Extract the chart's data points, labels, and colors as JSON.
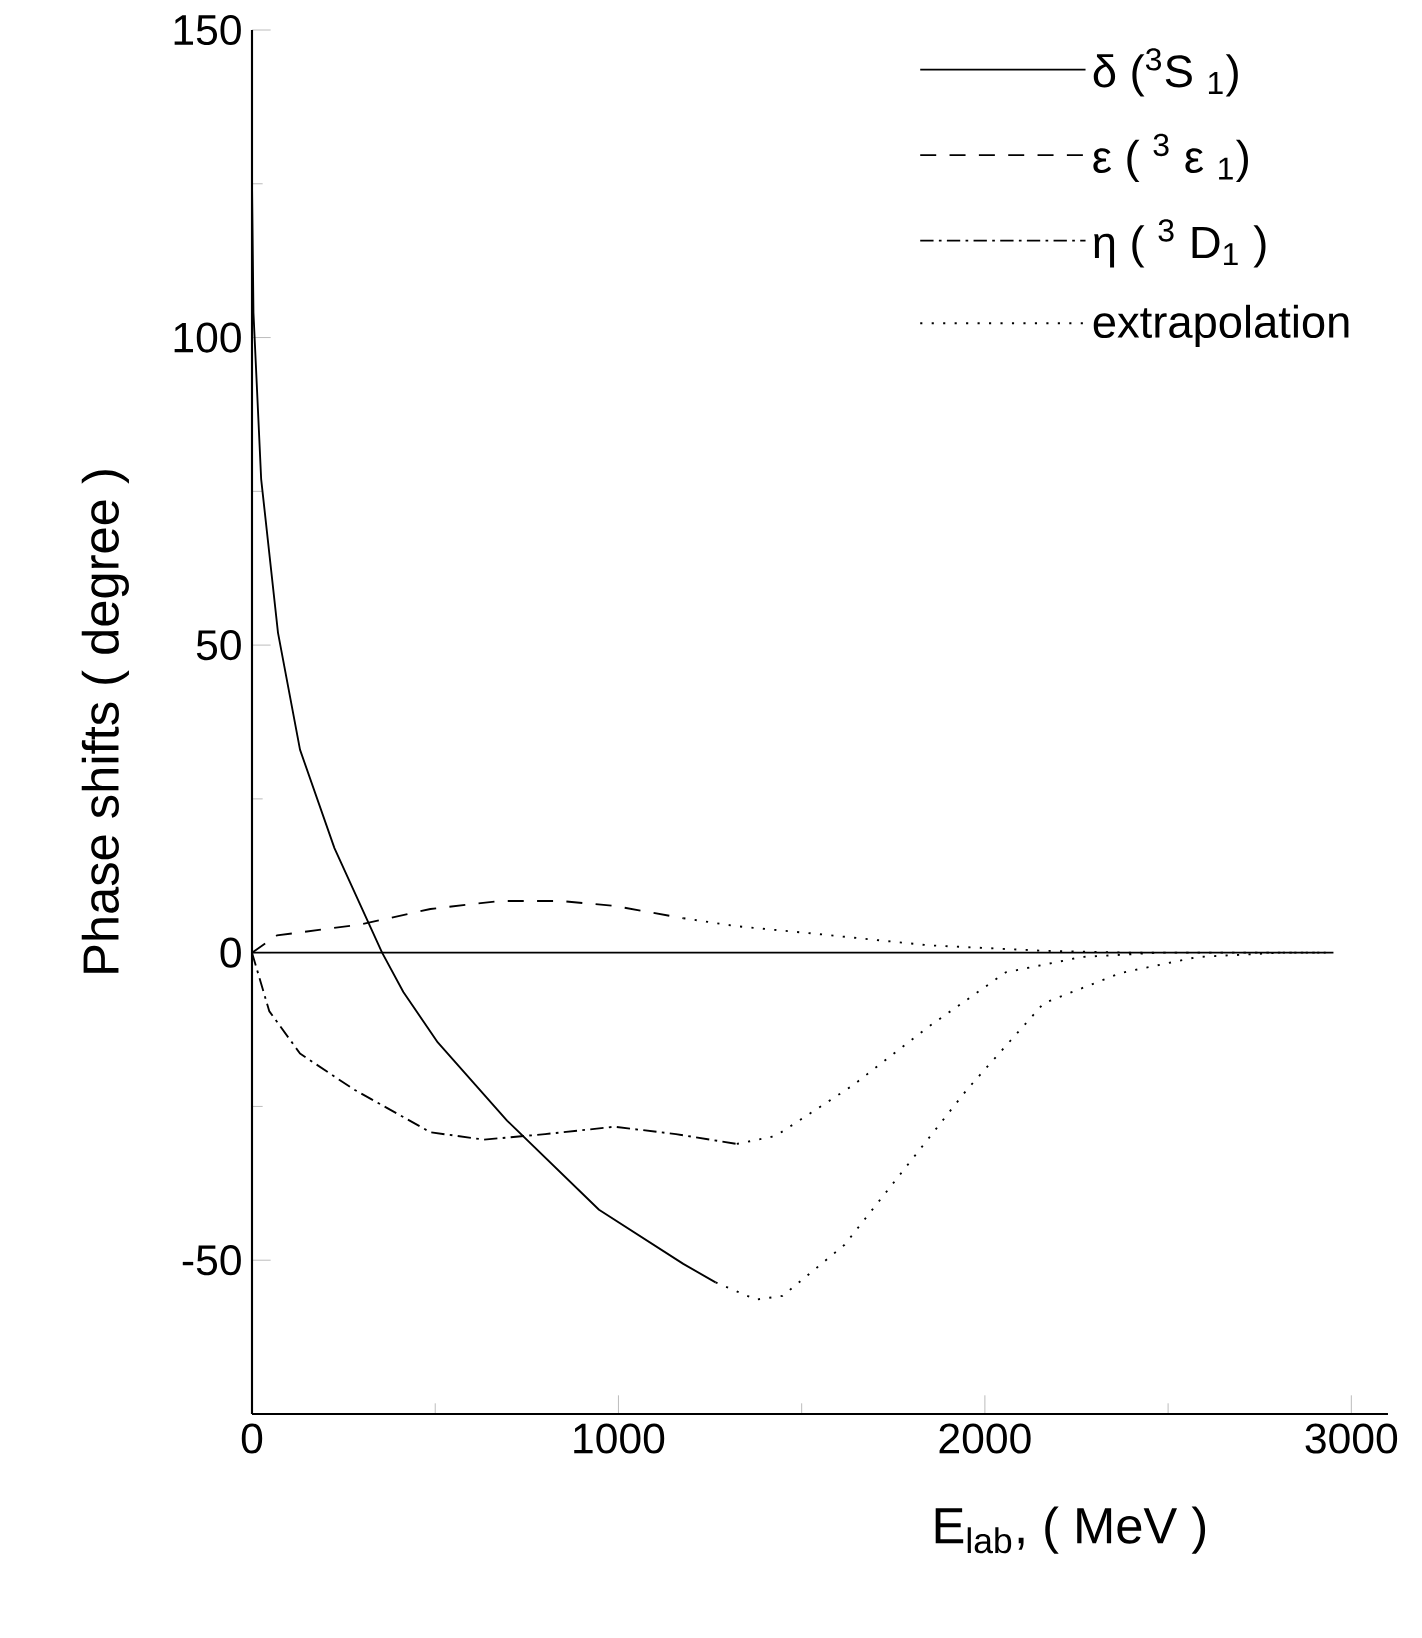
{
  "chart_data": {
    "type": "line",
    "xlabel": "E$_{lab}$, ( MeV )",
    "ylabel": "Phase shifts ( degree )",
    "xlim": [
      0,
      3100
    ],
    "ylim": [
      -75,
      150
    ],
    "xticks": [
      0,
      1000,
      2000,
      3000
    ],
    "yticks": [
      -50,
      0,
      50,
      100,
      150
    ],
    "legend": "top right",
    "ref_lines": [
      {
        "axis": "y",
        "value": 0,
        "color": "#000000"
      }
    ],
    "series": [
      {
        "name": "δ  ($^{3}$S $_{1}$)",
        "color": "#000000",
        "line_style": "solid",
        "x": [
          0,
          4,
          25,
          71,
          131,
          225,
          355,
          413,
          507,
          696,
          947,
          1177,
          1265
        ],
        "values": [
          125,
          104,
          77,
          52,
          33,
          17,
          0,
          -6.4,
          -14.6,
          -27.3,
          -41.8,
          -50.6,
          -53.6
        ]
      },
      {
        "name": "ε  ( $^{3}$ ε $_{1}$)",
        "color": "#000000",
        "line_style": "dashed",
        "x": [
          0,
          68,
          298,
          487,
          675,
          843,
          989,
          1177
        ],
        "values": [
          0,
          2.8,
          4.6,
          7.1,
          8.4,
          8.4,
          7.6,
          5.6
        ]
      },
      {
        "name": "η  ( $^{3}$ D$_{1}$ )",
        "color": "#000000",
        "line_style": "dashdot",
        "x": [
          0,
          47,
          131,
          277,
          487,
          633,
          800,
          989,
          1157,
          1323
        ],
        "values": [
          0,
          -9.5,
          -16.4,
          -22.2,
          -29.2,
          -30.4,
          -29.5,
          -28.3,
          -29.5,
          -31.1
        ]
      },
      {
        "name": "extrapolation",
        "color": "#000000",
        "line_style": "dotted",
        "x": [
          1265,
          1376,
          1448,
          1617,
          1784,
          1952,
          2161,
          2371,
          2580,
          2810,
          2930,
          null,
          1177,
          1323,
          1533,
          1845,
          2161,
          2400,
          2930,
          null,
          1323,
          1429,
          1639,
          1845,
          2057,
          2265,
          2475,
          2930
        ],
        "values": [
          -53.6,
          -56.4,
          -55.8,
          -47.5,
          -34.9,
          -22.2,
          -8.2,
          -3.3,
          -0.7,
          0,
          0,
          null,
          5.6,
          4.3,
          3.1,
          1.2,
          0.3,
          0,
          0,
          null,
          -31.1,
          -29.8,
          -21.6,
          -12.1,
          -3.2,
          -0.7,
          0,
          0
        ]
      }
    ]
  }
}
